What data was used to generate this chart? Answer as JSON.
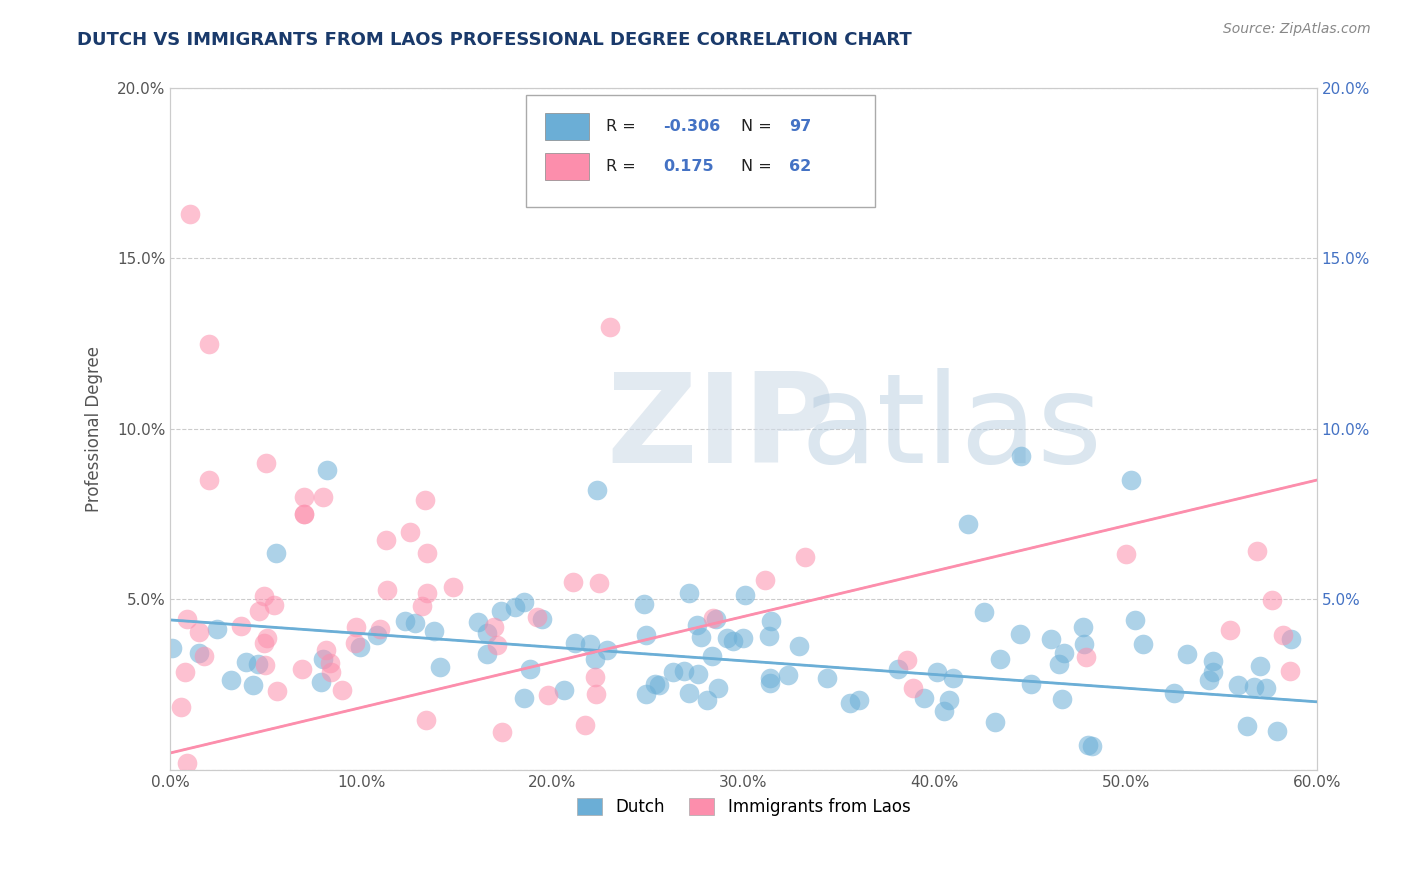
{
  "title": "DUTCH VS IMMIGRANTS FROM LAOS PROFESSIONAL DEGREE CORRELATION CHART",
  "source": "Source: ZipAtlas.com",
  "ylabel": "Professional Degree",
  "xlim": [
    0.0,
    0.6
  ],
  "ylim": [
    0.0,
    0.2
  ],
  "yticks": [
    0.0,
    0.05,
    0.1,
    0.15,
    0.2
  ],
  "ytick_labels_left": [
    "",
    "5.0%",
    "10.0%",
    "15.0%",
    "20.0%"
  ],
  "ytick_labels_right": [
    "",
    "5.0%",
    "10.0%",
    "15.0%",
    "20.0%"
  ],
  "xticks": [
    0.0,
    0.1,
    0.2,
    0.3,
    0.4,
    0.5,
    0.6
  ],
  "xtick_labels": [
    "0.0%",
    "10.0%",
    "20.0%",
    "30.0%",
    "40.0%",
    "50.0%",
    "60.0%"
  ],
  "dutch_color": "#6baed6",
  "laos_color": "#fc8eac",
  "dutch_R": -0.306,
  "dutch_N": 97,
  "laos_R": 0.175,
  "laos_N": 62,
  "legend_dutch_label": "Dutch",
  "legend_laos_label": "Immigrants from Laos",
  "watermark_zip": "ZIP",
  "watermark_atlas": "atlas",
  "title_color": "#1a3a6b",
  "source_color": "#888888",
  "axis_color": "#4472c4",
  "grid_color": "#cccccc"
}
